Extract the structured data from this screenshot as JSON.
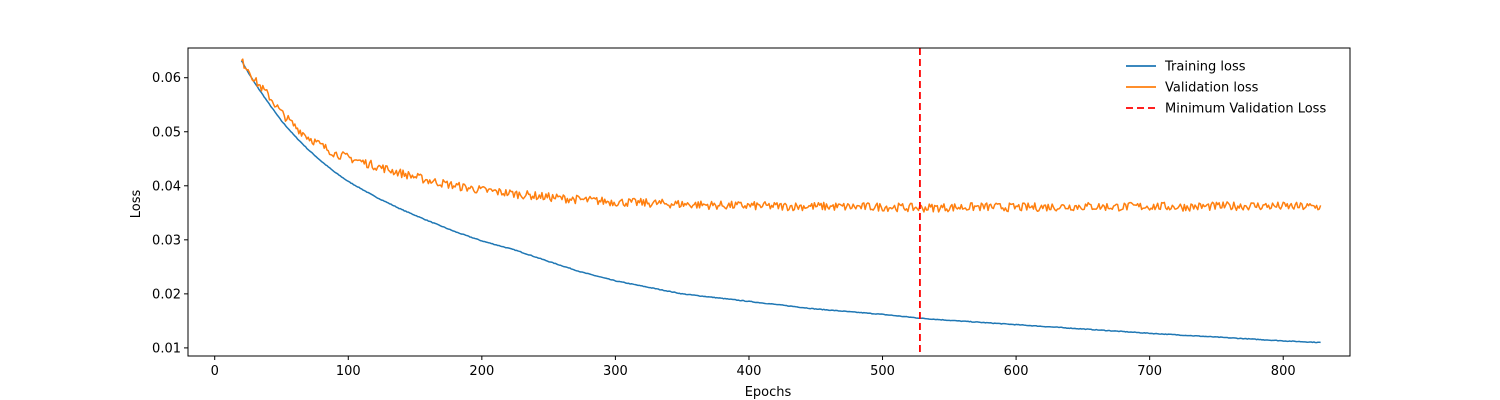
{
  "chart_data": {
    "type": "line",
    "title": "",
    "xlabel": "Epochs",
    "ylabel": "Loss",
    "xlim": [
      -20,
      850
    ],
    "ylim": [
      0.0085,
      0.0655
    ],
    "xticks": [
      0,
      100,
      200,
      300,
      400,
      500,
      600,
      700,
      800
    ],
    "yticks": [
      0.01,
      0.02,
      0.03,
      0.04,
      0.05,
      0.06
    ],
    "xtick_labels": [
      "0",
      "100",
      "200",
      "300",
      "400",
      "500",
      "600",
      "700",
      "800"
    ],
    "ytick_labels": [
      "0.01",
      "0.02",
      "0.03",
      "0.04",
      "0.05",
      "0.06"
    ],
    "grid": false,
    "legend_position": "top-right",
    "series": [
      {
        "name": "Training loss",
        "color": "#1f77b4",
        "style": "solid",
        "x": [
          20,
          25,
          30,
          40,
          50,
          60,
          70,
          80,
          90,
          100,
          120,
          140,
          160,
          180,
          200,
          225,
          250,
          275,
          300,
          350,
          400,
          450,
          500,
          528,
          550,
          600,
          650,
          700,
          750,
          800,
          828
        ],
        "y": [
          0.0632,
          0.061,
          0.059,
          0.0554,
          0.052,
          0.0492,
          0.0467,
          0.0445,
          0.0425,
          0.0408,
          0.038,
          0.0356,
          0.0335,
          0.0315,
          0.0298,
          0.0281,
          0.026,
          0.024,
          0.0224,
          0.02,
          0.0186,
          0.0172,
          0.0162,
          0.0155,
          0.0151,
          0.0143,
          0.0135,
          0.0127,
          0.012,
          0.0113,
          0.011
        ]
      },
      {
        "name": "Validation loss",
        "color": "#ff7f0e",
        "style": "solid",
        "x": [
          20,
          25,
          30,
          40,
          50,
          60,
          70,
          80,
          90,
          100,
          120,
          140,
          160,
          180,
          200,
          225,
          250,
          275,
          300,
          325,
          350,
          375,
          400,
          425,
          450,
          475,
          500,
          528,
          550,
          575,
          600,
          625,
          650,
          675,
          700,
          725,
          750,
          775,
          800,
          828
        ],
        "y": [
          0.063,
          0.0617,
          0.0595,
          0.0568,
          0.0535,
          0.051,
          0.049,
          0.0474,
          0.046,
          0.0452,
          0.0437,
          0.0423,
          0.041,
          0.04,
          0.0392,
          0.0385,
          0.0379,
          0.0374,
          0.037,
          0.0368,
          0.0366,
          0.0364,
          0.0363,
          0.0362,
          0.0362,
          0.0361,
          0.0361,
          0.0359,
          0.036,
          0.0361,
          0.036,
          0.0361,
          0.0362,
          0.0361,
          0.0362,
          0.0361,
          0.0362,
          0.0363,
          0.0362,
          0.0361
        ]
      },
      {
        "name": "Minimum Validation Loss",
        "color": "#ff0000",
        "style": "dashed",
        "vline_x": 528
      }
    ]
  }
}
